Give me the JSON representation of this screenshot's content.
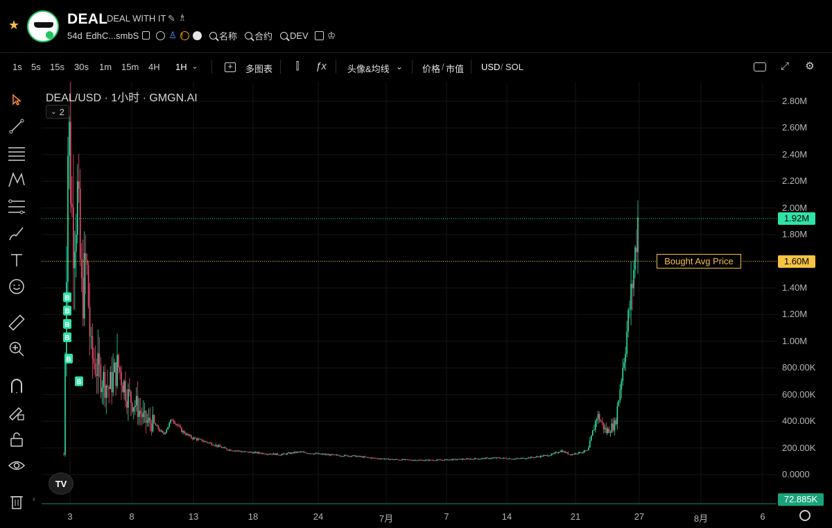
{
  "header": {
    "token_symbol": "DEAL",
    "token_full_name": "DEAL WITH IT",
    "age": "54d",
    "address_short": "EdhC...smbS",
    "search_name_label": "名称",
    "search_contract_label": "合约",
    "search_dev_label": "DEV"
  },
  "toolbar": {
    "timeframes": [
      "1s",
      "5s",
      "15s",
      "30s",
      "1m",
      "15m",
      "4H",
      "1H"
    ],
    "selected_timeframe": "1H",
    "multi_chart_label": "多图表",
    "indicator_label": "头像&均线",
    "price_label": "价格",
    "mcap_label": "市值",
    "usd_label": "USD",
    "sol_label": "SOL",
    "separator": "/"
  },
  "chart_data": {
    "type": "candlestick",
    "title": "DEAL/USD · 1小时 · GMGN.AI",
    "collapse_count": "2",
    "y_tick_labels": [
      "2.80M",
      "2.60M",
      "2.40M",
      "2.20M",
      "2.00M",
      "1.80M",
      "1.60M",
      "1.40M",
      "1.20M",
      "1.00M",
      "800.00K",
      "600.00K",
      "400.00K",
      "200.00K",
      "0.0000"
    ],
    "y_tick_values": [
      2800000,
      2600000,
      2400000,
      2200000,
      2000000,
      1800000,
      1600000,
      1400000,
      1200000,
      1000000,
      800000,
      600000,
      400000,
      200000,
      0
    ],
    "ylim": [
      0,
      2800000
    ],
    "x_tick_labels": [
      "3",
      "8",
      "13",
      "18",
      "24",
      "7月",
      "7",
      "14",
      "21",
      "27",
      "8月",
      "6"
    ],
    "current_price": 1920000,
    "current_price_label": "1.92M",
    "bought_avg_price": 1600000,
    "bought_avg_price_label": "1.60M",
    "bought_avg_text": "Bought Avg Price",
    "volume_label": "72.885K",
    "trade_marker_label": "B",
    "trade_marker_prices": [
      1330000,
      1230000,
      1130000,
      1030000,
      870000,
      700000
    ],
    "price_series": [
      [
        0,
        150000
      ],
      [
        0.5,
        2700000
      ],
      [
        1,
        1800000
      ],
      [
        1.5,
        2100000
      ],
      [
        2,
        1300000
      ],
      [
        2.5,
        1600000
      ],
      [
        3,
        900000
      ],
      [
        4,
        750000
      ],
      [
        5,
        650000
      ],
      [
        6,
        820000
      ],
      [
        7,
        600000
      ],
      [
        8,
        520000
      ],
      [
        9,
        400000
      ],
      [
        10,
        380000
      ],
      [
        11,
        300000
      ],
      [
        12,
        420000
      ],
      [
        13,
        330000
      ],
      [
        14,
        280000
      ],
      [
        15,
        260000
      ],
      [
        16,
        240000
      ],
      [
        18,
        190000
      ],
      [
        20,
        170000
      ],
      [
        22,
        160000
      ],
      [
        24,
        150000
      ],
      [
        26,
        170000
      ],
      [
        28,
        155000
      ],
      [
        30,
        145000
      ],
      [
        32,
        140000
      ],
      [
        34,
        125000
      ],
      [
        36,
        115000
      ],
      [
        38,
        110000
      ],
      [
        40,
        108000
      ],
      [
        42,
        110000
      ],
      [
        44,
        115000
      ],
      [
        46,
        120000
      ],
      [
        48,
        125000
      ],
      [
        50,
        118000
      ],
      [
        52,
        130000
      ],
      [
        54,
        150000
      ],
      [
        55,
        180000
      ],
      [
        56,
        150000
      ],
      [
        57,
        165000
      ],
      [
        58,
        180000
      ],
      [
        59,
        450000
      ],
      [
        60,
        320000
      ],
      [
        61,
        380000
      ],
      [
        62,
        900000
      ],
      [
        62.5,
        1200000
      ],
      [
        63,
        1500000
      ],
      [
        63.5,
        1920000
      ]
    ],
    "colors": {
      "up": "#2fe3a8",
      "down": "#f0506e",
      "bought": "#f5c242",
      "current": "#2fe3a8",
      "grid": "#151515",
      "marker": "#2fe3a8"
    }
  }
}
